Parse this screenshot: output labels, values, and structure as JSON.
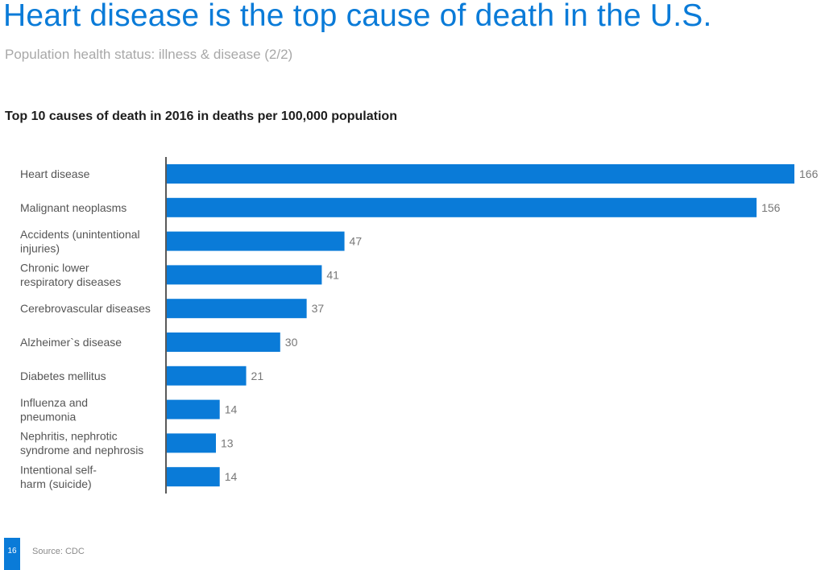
{
  "header": {
    "title": "Heart disease is the top cause of death in the U.S.",
    "subtitle": "Population health status: illness & disease (2/2)"
  },
  "footer": {
    "page_number": "16",
    "source": "Source: CDC"
  },
  "colors": {
    "accent": "#0a7bd8",
    "bar": "#0a7bd8"
  },
  "chart_data": {
    "type": "bar",
    "orientation": "horizontal",
    "title": "Top 10 causes of death in 2016 in deaths per 100,000 population",
    "categories": [
      [
        "Heart disease"
      ],
      [
        "Malignant neoplasms"
      ],
      [
        "Accidents (unintentional",
        "injuries)"
      ],
      [
        "Chronic lower",
        "respiratory diseases"
      ],
      [
        "Cerebrovascular diseases"
      ],
      [
        "Alzheimer`s disease"
      ],
      [
        "Diabetes mellitus"
      ],
      [
        "Influenza and",
        "pneumonia"
      ],
      [
        "Nephritis, nephrotic",
        "syndrome and nephrosis"
      ],
      [
        "Intentional self-",
        "harm (suicide)"
      ]
    ],
    "values": [
      166,
      156,
      47,
      41,
      37,
      30,
      21,
      14,
      13,
      14
    ],
    "xlim": [
      0,
      166
    ],
    "grid": false,
    "legend": "none",
    "data_labels": true
  }
}
